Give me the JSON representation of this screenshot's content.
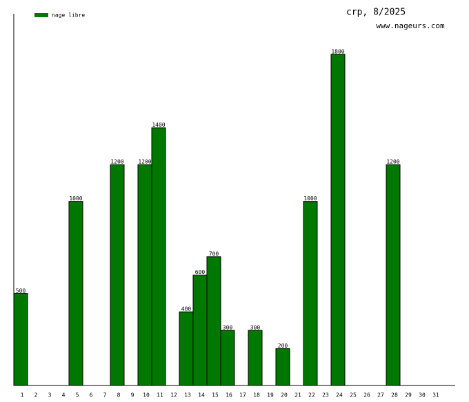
{
  "chart_data": {
    "type": "bar",
    "title": "crp, 8/2025",
    "subtitle": "www.nageurs.com",
    "categories": [
      "1",
      "2",
      "3",
      "4",
      "5",
      "6",
      "7",
      "8",
      "9",
      "10",
      "11",
      "12",
      "13",
      "14",
      "15",
      "16",
      "17",
      "18",
      "19",
      "20",
      "21",
      "22",
      "23",
      "24",
      "25",
      "26",
      "27",
      "28",
      "29",
      "30",
      "31"
    ],
    "series": [
      {
        "name": "nage libre",
        "color": "#007800",
        "values": [
          500,
          null,
          null,
          null,
          1000,
          null,
          null,
          1200,
          null,
          1200,
          1400,
          null,
          400,
          600,
          700,
          300,
          null,
          300,
          null,
          200,
          null,
          1000,
          null,
          1800,
          null,
          null,
          null,
          1200,
          null,
          null,
          null
        ]
      }
    ],
    "ylim": [
      0,
      2020
    ],
    "legend": "top-left"
  }
}
